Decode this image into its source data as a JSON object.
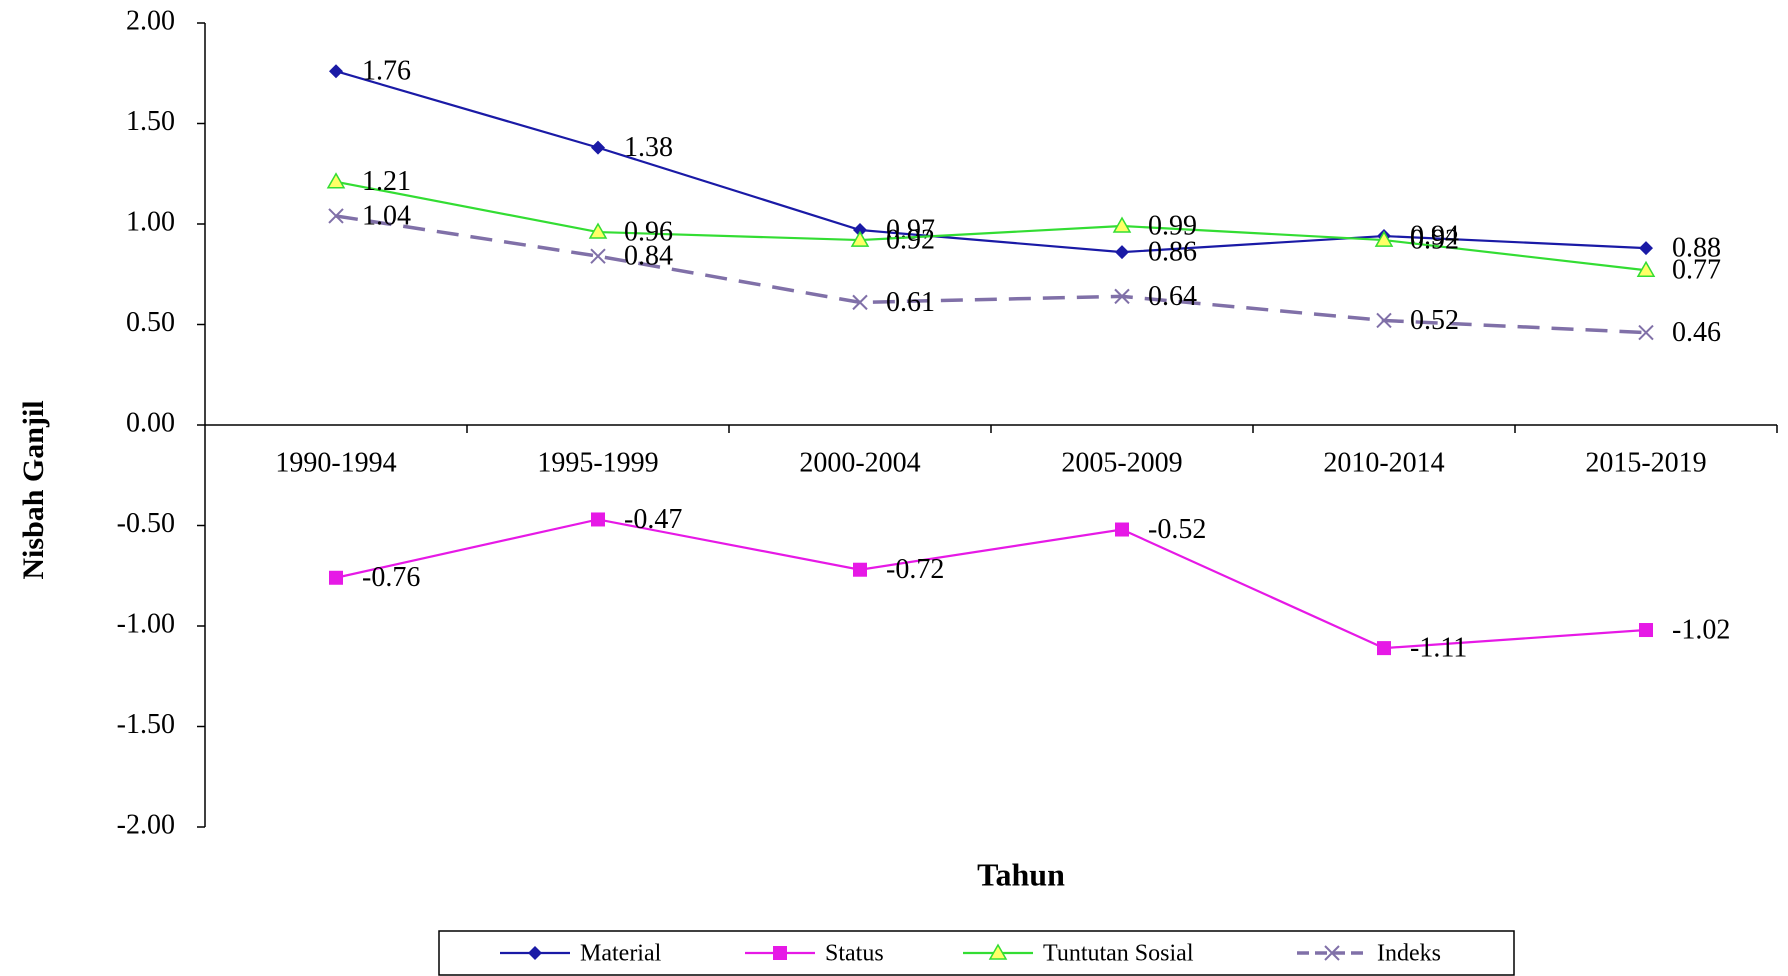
{
  "chart_data": {
    "type": "line",
    "categories": [
      "1990-1994",
      "1995-1999",
      "2000-2004",
      "2005-2009",
      "2010-2014",
      "2015-2019"
    ],
    "series": [
      {
        "name": "Material",
        "color": "#1a1aa6",
        "marker": "diamond",
        "values": [
          1.76,
          1.38,
          0.97,
          0.86,
          0.94,
          0.88
        ]
      },
      {
        "name": "Status",
        "color": "#e619e6",
        "marker": "square",
        "values": [
          -0.76,
          -0.47,
          -0.72,
          -0.52,
          -1.11,
          -1.02
        ]
      },
      {
        "name": "Tuntutan Sosial",
        "color": "#33dd33",
        "marker": "triangle",
        "values": [
          1.21,
          0.96,
          0.92,
          0.99,
          0.92,
          0.77
        ]
      },
      {
        "name": "Indeks",
        "color": "#8070a8",
        "marker": "x",
        "dashed": true,
        "values": [
          1.04,
          0.84,
          0.61,
          0.64,
          0.52,
          0.46
        ]
      }
    ],
    "xlabel": "Tahun",
    "ylabel": "Nisbah Ganjil",
    "ylim": [
      -2,
      2
    ],
    "yticks": [
      {
        "value": 2,
        "label": "2.00"
      },
      {
        "value": 1.5,
        "label": "1.50"
      },
      {
        "value": 1,
        "label": "1.00"
      },
      {
        "value": 0.5,
        "label": "0.50"
      },
      {
        "value": 0,
        "label": "0.00"
      },
      {
        "value": -0.5,
        "label": "-0.50"
      },
      {
        "value": -1,
        "label": "-1.00"
      },
      {
        "value": -1.5,
        "label": "-1.50"
      },
      {
        "value": -2,
        "label": "-2.00"
      }
    ],
    "legend": "bottom"
  }
}
